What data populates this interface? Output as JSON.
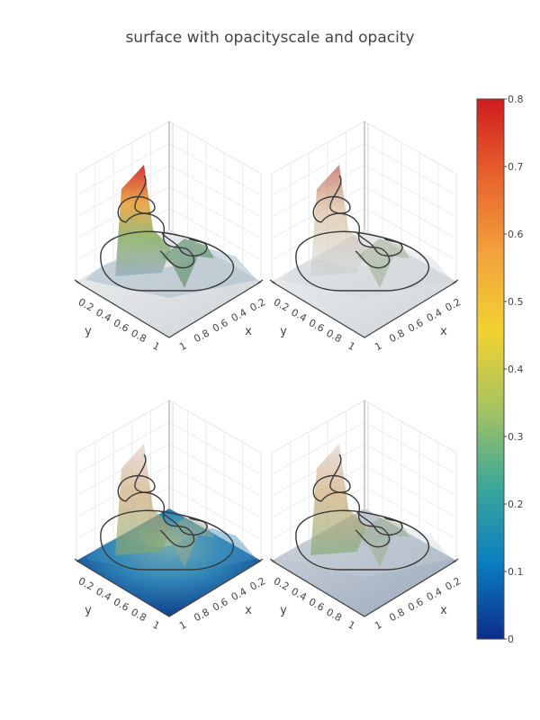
{
  "title": "surface with opacityscale and opacity",
  "chart_data": {
    "type": "surface",
    "title": "surface with opacityscale and opacity",
    "subplots": [
      {
        "id": "scene1",
        "xlabel": "x",
        "ylabel": "y",
        "xticks": [
          "0.2",
          "0.4",
          "0.6",
          "0.8",
          "1"
        ],
        "yticks": [
          "0.2",
          "0.4",
          "0.6",
          "0.8",
          "1"
        ],
        "floor": "light-gray",
        "surface_opacity": "high"
      },
      {
        "id": "scene2",
        "xlabel": "x",
        "ylabel": "y",
        "xticks": [
          "0.2",
          "0.4",
          "0.6",
          "0.8",
          "1"
        ],
        "yticks": [
          "0.2",
          "0.4",
          "0.6",
          "0.8",
          "1"
        ],
        "floor": "light-gray",
        "surface_opacity": "low"
      },
      {
        "id": "scene3",
        "xlabel": "x",
        "ylabel": "y",
        "xticks": [
          "0.2",
          "0.4",
          "0.6",
          "0.8",
          "1"
        ],
        "yticks": [
          "0.2",
          "0.4",
          "0.6",
          "0.8",
          "1"
        ],
        "floor": "colored",
        "surface_opacity": "high"
      },
      {
        "id": "scene4",
        "xlabel": "x",
        "ylabel": "y",
        "xticks": [
          "0.2",
          "0.4",
          "0.6",
          "0.8",
          "1"
        ],
        "yticks": [
          "0.2",
          "0.4",
          "0.6",
          "0.8",
          "1"
        ],
        "floor": "gray-translucent",
        "surface_opacity": "low"
      }
    ],
    "colorbar": {
      "min": 0,
      "max": 0.8,
      "ticks": [
        "0",
        "0.1",
        "0.2",
        "0.3",
        "0.4",
        "0.5",
        "0.6",
        "0.7",
        "0.8"
      ],
      "colorscale": [
        "#0d2d8a",
        "#0a7fc0",
        "#3ea898",
        "#a8c460",
        "#f2d230",
        "#f2a23c",
        "#e8632c",
        "#d01c1f"
      ]
    }
  }
}
